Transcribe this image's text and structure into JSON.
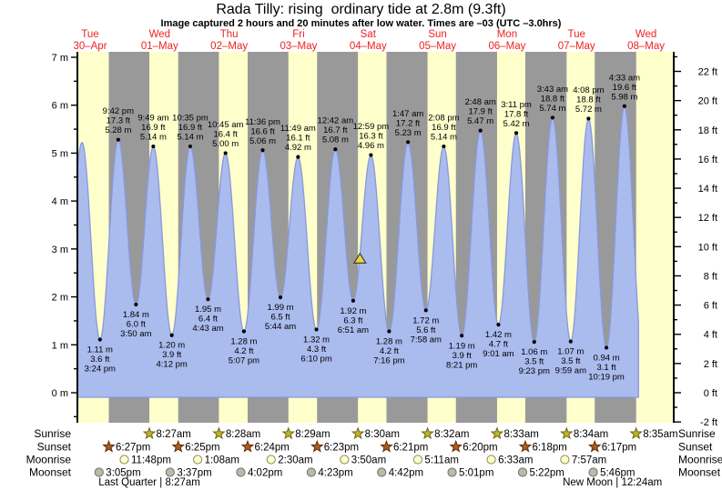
{
  "header": {
    "title": "Rada Tilly: rising  ordinary tide at 2.8m (9.3ft)",
    "subtitle": "Image captured 2 hours and 20 minutes after low water. Times are –03 (UTC –3.0hrs)"
  },
  "colors": {
    "day_band": "#ffffcc",
    "night_band": "#999999",
    "tide_fill": "#aabbee",
    "tide_stroke": "#8899dd",
    "day_label": "#ee2222",
    "axis": "#000000",
    "marker_fill": "#e8d44a",
    "marker_stroke": "#444422",
    "sunrise_star_fill": "#c0b42c",
    "sunrise_star_stroke": "#6e6616",
    "sunset_star_fill": "#b05c20",
    "sunset_star_stroke": "#5f2c08",
    "moonrise_fill": "#ffffcc",
    "moonrise_stroke": "#8a8a5e",
    "moonset_fill": "#b9b9ac",
    "moonset_stroke": "#72726a"
  },
  "chart_data": {
    "type": "area",
    "title": "Rada Tilly tide height over time",
    "x_axis": {
      "days": [
        {
          "dow": "Tue",
          "date": "30–Apr"
        },
        {
          "dow": "Wed",
          "date": "01–May"
        },
        {
          "dow": "Thu",
          "date": "02–May"
        },
        {
          "dow": "Fri",
          "date": "03–May"
        },
        {
          "dow": "Sat",
          "date": "04–May"
        },
        {
          "dow": "Sun",
          "date": "05–May"
        },
        {
          "dow": "Mon",
          "date": "06–May"
        },
        {
          "dow": "Tue",
          "date": "07–May"
        },
        {
          "dow": "Wed",
          "date": "08–May"
        }
      ]
    },
    "y_axis_left": {
      "unit": "m",
      "tick_values": [
        0,
        1,
        2,
        3,
        4,
        5,
        6,
        7
      ],
      "minor_step": 0.5
    },
    "y_axis_right": {
      "unit": "ft",
      "tick_values": [
        -2,
        0,
        2,
        4,
        6,
        8,
        10,
        12,
        14,
        16,
        18,
        20,
        22
      ],
      "minor_step": 1
    },
    "extremes": [
      {
        "type": "low",
        "time": "3:24 pm",
        "ft": "3.6 ft",
        "m": "1.11 m",
        "value_m": 1.11,
        "t": 15.4
      },
      {
        "type": "high",
        "time": "9:42 pm",
        "ft": "17.3 ft",
        "m": "5.28 m",
        "value_m": 5.28,
        "t": 21.7
      },
      {
        "type": "low",
        "time": "3:50 am",
        "ft": "6.0 ft",
        "m": "1.84 m",
        "value_m": 1.84,
        "t": 27.833
      },
      {
        "type": "high",
        "time": "9:49 am",
        "ft": "16.9 ft",
        "m": "5.14 m",
        "value_m": 5.14,
        "t": 33.817
      },
      {
        "type": "low",
        "time": "4:12 pm",
        "ft": "3.9 ft",
        "m": "1.20 m",
        "value_m": 1.2,
        "t": 40.2
      },
      {
        "type": "high",
        "time": "10:35 pm",
        "ft": "16.9 ft",
        "m": "5.14 m",
        "value_m": 5.14,
        "t": 46.583
      },
      {
        "type": "low",
        "time": "4:43 am",
        "ft": "6.4 ft",
        "m": "1.95 m",
        "value_m": 1.95,
        "t": 52.717
      },
      {
        "type": "high",
        "time": "10:45 am",
        "ft": "16.4 ft",
        "m": "5.00 m",
        "value_m": 5.0,
        "t": 58.75
      },
      {
        "type": "low",
        "time": "5:07 pm",
        "ft": "4.2 ft",
        "m": "1.28 m",
        "value_m": 1.28,
        "t": 65.117
      },
      {
        "type": "high",
        "time": "11:36 pm",
        "ft": "16.6 ft",
        "m": "5.06 m",
        "value_m": 5.06,
        "t": 71.6
      },
      {
        "type": "low",
        "time": "5:44 am",
        "ft": "6.5 ft",
        "m": "1.99 m",
        "value_m": 1.99,
        "t": 77.733
      },
      {
        "type": "high",
        "time": "11:49 am",
        "ft": "16.1 ft",
        "m": "4.92 m",
        "value_m": 4.92,
        "t": 83.817
      },
      {
        "type": "low",
        "time": "6:10 pm",
        "ft": "4.3 ft",
        "m": "1.32 m",
        "value_m": 1.32,
        "t": 90.167
      },
      {
        "type": "high",
        "time": "12:42 am",
        "ft": "16.7 ft",
        "m": "5.08 m",
        "value_m": 5.08,
        "t": 96.7
      },
      {
        "type": "low",
        "time": "6:51 am",
        "ft": "6.3 ft",
        "m": "1.92 m",
        "value_m": 1.92,
        "t": 102.85
      },
      {
        "type": "high",
        "time": "12:59 pm",
        "ft": "16.3 ft",
        "m": "4.96 m",
        "value_m": 4.96,
        "t": 108.983
      },
      {
        "type": "low",
        "time": "7:16 pm",
        "ft": "4.2 ft",
        "m": "1.28 m",
        "value_m": 1.28,
        "t": 115.267
      },
      {
        "type": "high",
        "time": "1:47 am",
        "ft": "17.2 ft",
        "m": "5.23 m",
        "value_m": 5.23,
        "t": 121.783
      },
      {
        "type": "low",
        "time": "7:58 am",
        "ft": "5.6 ft",
        "m": "1.72 m",
        "value_m": 1.72,
        "t": 127.967
      },
      {
        "type": "high",
        "time": "2:08 pm",
        "ft": "16.9 ft",
        "m": "5.14 m",
        "value_m": 5.14,
        "t": 134.133
      },
      {
        "type": "low",
        "time": "8:21 pm",
        "ft": "3.9 ft",
        "m": "1.19 m",
        "value_m": 1.19,
        "t": 140.35
      },
      {
        "type": "high",
        "time": "2:48 am",
        "ft": "17.9 ft",
        "m": "5.47 m",
        "value_m": 5.47,
        "t": 146.8
      },
      {
        "type": "low",
        "time": "9:01 am",
        "ft": "4.7 ft",
        "m": "1.42 m",
        "value_m": 1.42,
        "t": 153.017
      },
      {
        "type": "high",
        "time": "3:11 pm",
        "ft": "17.8 ft",
        "m": "5.42 m",
        "value_m": 5.42,
        "t": 159.183
      },
      {
        "type": "low",
        "time": "9:23 pm",
        "ft": "3.5 ft",
        "m": "1.06 m",
        "value_m": 1.06,
        "t": 165.383
      },
      {
        "type": "high",
        "time": "3:43 am",
        "ft": "18.8 ft",
        "m": "5.74 m",
        "value_m": 5.74,
        "t": 171.717
      },
      {
        "type": "low",
        "time": "9:59 am",
        "ft": "3.5 ft",
        "m": "1.07 m",
        "value_m": 1.07,
        "t": 177.983
      },
      {
        "type": "high",
        "time": "4:08 pm",
        "ft": "18.8 ft",
        "m": "5.72 m",
        "value_m": 5.72,
        "t": 184.133
      },
      {
        "type": "low",
        "time": "10:19 pm",
        "ft": "3.1 ft",
        "m": "0.94 m",
        "value_m": 0.94,
        "t": 190.317
      },
      {
        "type": "high",
        "time": "4:33 am",
        "ft": "19.6 ft",
        "m": "5.98 m",
        "value_m": 5.98,
        "t": 196.55
      }
    ],
    "edge_anchors": [
      {
        "t": 3.0,
        "m": 1.85
      },
      {
        "t": 9.2,
        "m": 5.22
      },
      {
        "t": 202.9,
        "m": 0.8
      }
    ],
    "curve_domain_t": [
      7.6,
      201.4
    ],
    "marker": {
      "value_m": 2.8,
      "t": 105.18,
      "shape": "triangle"
    }
  },
  "astro": {
    "rows": [
      {
        "label": "Sunrise",
        "icon": "sunrise-star",
        "entries": [
          {
            "time": "8:27am",
            "t": 32.45
          },
          {
            "time": "8:28am",
            "t": 56.467
          },
          {
            "time": "8:29am",
            "t": 80.483
          },
          {
            "time": "8:30am",
            "t": 104.5
          },
          {
            "time": "8:32am",
            "t": 128.533
          },
          {
            "time": "8:33am",
            "t": 152.55
          },
          {
            "time": "8:34am",
            "t": 176.567
          },
          {
            "time": "8:35am",
            "t": 200.583
          }
        ]
      },
      {
        "label": "Sunset",
        "icon": "sunset-star",
        "entries": [
          {
            "time": "6:27pm",
            "t": 18.45
          },
          {
            "time": "6:25pm",
            "t": 42.417
          },
          {
            "time": "6:24pm",
            "t": 66.4
          },
          {
            "time": "6:23pm",
            "t": 90.383
          },
          {
            "time": "6:21pm",
            "t": 114.35
          },
          {
            "time": "6:20pm",
            "t": 138.333
          },
          {
            "time": "6:18pm",
            "t": 162.3
          },
          {
            "time": "6:17pm",
            "t": 186.283
          }
        ]
      },
      {
        "label": "Moonrise",
        "icon": "moonrise-circle",
        "entries": [
          {
            "time": "11:48pm",
            "t": 23.8
          },
          {
            "time": "1:08am",
            "t": 49.133
          },
          {
            "time": "2:30am",
            "t": 74.5
          },
          {
            "time": "3:50am",
            "t": 99.833
          },
          {
            "time": "5:11am",
            "t": 125.183
          },
          {
            "time": "6:33am",
            "t": 150.55
          },
          {
            "time": "7:57am",
            "t": 175.95
          }
        ]
      },
      {
        "label": "Moonset",
        "icon": "moonset-circle",
        "entries": [
          {
            "time": "3:05pm",
            "t": 15.083
          },
          {
            "time": "3:37pm",
            "t": 39.617
          },
          {
            "time": "4:02pm",
            "t": 64.033
          },
          {
            "time": "4:23pm",
            "t": 88.383
          },
          {
            "time": "4:42pm",
            "t": 112.7
          },
          {
            "time": "5:01pm",
            "t": 137.017
          },
          {
            "time": "5:22pm",
            "t": 161.367
          },
          {
            "time": "5:46pm",
            "t": 185.767
          }
        ]
      }
    ],
    "phases": [
      {
        "text": "Last Quarter | 8:27am",
        "t": 32.45
      },
      {
        "text": "New Moon | 12:24am",
        "t": 192.4
      }
    ]
  }
}
